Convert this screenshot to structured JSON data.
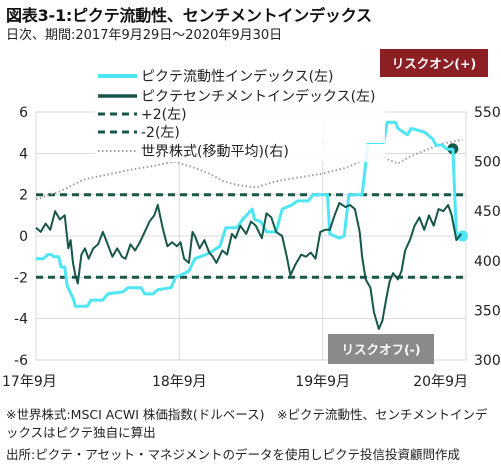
{
  "title": "図表3-1:ピクテ流動性、センチメントインデックス",
  "subtitle": "日次、期間:2017年9月29日～2020年9月30日",
  "footnotes": {
    "line1": "※世界株式:MSCI ACWI 株価指数(ドルベース)　※ピクテ流動性、センチメントインデックスはピクテ独自に算出",
    "line2": "出所:ピクテ・アセット・マネジメントのデータを使用しピクテ投信投資顧問作成"
  },
  "colors": {
    "liquidity": "#4ee5f4",
    "sentiment": "#17574a",
    "threshold": "#17574a",
    "world": "#9e9e9e",
    "risk_on_bg": "#8b1f23",
    "risk_off_bg": "#8a8a8a",
    "plot_bg": "#ffffff",
    "grid": "#d9d9d9"
  },
  "chart_data": {
    "type": "line",
    "x_ticks": [
      "17年9月",
      "18年9月",
      "19年9月",
      "20年9月"
    ],
    "x_domain_months": [
      0,
      36
    ],
    "y_left": {
      "range": [
        -6,
        6
      ],
      "ticks": [
        -6,
        -4,
        -2,
        0,
        2,
        4,
        6
      ]
    },
    "y_right": {
      "range": [
        300,
        550
      ],
      "ticks": [
        300,
        350,
        400,
        450,
        500,
        550
      ]
    },
    "legend_position": "top-center",
    "annotations": {
      "risk_on": "リスクオン(+)",
      "risk_off": "リスクオフ(-)"
    },
    "series": [
      {
        "name": "ピクテ流動性インデックス(左)",
        "axis": "left",
        "style": "solid",
        "points": [
          [
            0,
            -1.1
          ],
          [
            0.6,
            -1.1
          ],
          [
            1.0,
            -0.9
          ],
          [
            1.3,
            -0.9
          ],
          [
            1.5,
            -1.0
          ],
          [
            1.9,
            -1.0
          ],
          [
            2.1,
            -1.5
          ],
          [
            2.4,
            -1.5
          ],
          [
            2.6,
            -2.4
          ],
          [
            3.1,
            -3.0
          ],
          [
            3.3,
            -3.4
          ],
          [
            4.3,
            -3.4
          ],
          [
            4.6,
            -3.1
          ],
          [
            5.6,
            -3.1
          ],
          [
            6.0,
            -2.8
          ],
          [
            7.3,
            -2.7
          ],
          [
            7.7,
            -2.5
          ],
          [
            8.8,
            -2.5
          ],
          [
            9.1,
            -2.8
          ],
          [
            9.8,
            -2.8
          ],
          [
            10.2,
            -2.6
          ],
          [
            11.3,
            -2.5
          ],
          [
            11.7,
            -2.0
          ],
          [
            12.8,
            -1.7
          ],
          [
            13.3,
            -1.1
          ],
          [
            14.2,
            -0.9
          ],
          [
            14.6,
            -0.8
          ],
          [
            15.4,
            -0.5
          ],
          [
            15.9,
            0.4
          ],
          [
            16.8,
            0.4
          ],
          [
            17.3,
            0.8
          ],
          [
            18.1,
            1.3
          ],
          [
            18.3,
            0.8
          ],
          [
            18.8,
            0.7
          ],
          [
            19.3,
            0.2
          ],
          [
            20.1,
            0.2
          ],
          [
            20.6,
            1.3
          ],
          [
            21.4,
            1.5
          ],
          [
            21.9,
            1.7
          ],
          [
            22.8,
            1.7
          ],
          [
            23.2,
            2.0
          ],
          [
            24.4,
            2.0
          ],
          [
            24.6,
            0.1
          ],
          [
            25.4,
            -0.1
          ],
          [
            25.8,
            0.0
          ],
          [
            26.2,
            2.0
          ],
          [
            27.3,
            2.0
          ],
          [
            27.8,
            4.5
          ],
          [
            29.1,
            4.5
          ],
          [
            29.4,
            5.5
          ],
          [
            30.1,
            5.5
          ],
          [
            30.3,
            5.2
          ],
          [
            31.1,
            4.9
          ],
          [
            31.4,
            5.2
          ],
          [
            32.1,
            5.1
          ],
          [
            32.6,
            5.0
          ],
          [
            33.2,
            4.7
          ],
          [
            33.5,
            4.4
          ],
          [
            34.0,
            4.4
          ],
          [
            34.4,
            4.2
          ],
          [
            34.9,
            4.2
          ],
          [
            35.2,
            0.0
          ],
          [
            35.7,
            0.0
          ]
        ]
      },
      {
        "name": "ピクテセンチメントインデックス(左)",
        "axis": "left",
        "style": "solid",
        "points": [
          [
            0,
            0.4
          ],
          [
            0.4,
            0.2
          ],
          [
            0.8,
            0.6
          ],
          [
            1.2,
            0.3
          ],
          [
            1.6,
            1.2
          ],
          [
            2.0,
            0.8
          ],
          [
            2.4,
            1.0
          ],
          [
            2.7,
            -0.6
          ],
          [
            2.9,
            -0.2
          ],
          [
            3.1,
            -1.3
          ],
          [
            3.3,
            -1.9
          ],
          [
            3.5,
            -2.3
          ],
          [
            3.8,
            -0.9
          ],
          [
            4.1,
            -0.6
          ],
          [
            4.4,
            -1.1
          ],
          [
            4.8,
            -0.6
          ],
          [
            5.2,
            -0.4
          ],
          [
            5.6,
            0.2
          ],
          [
            6.0,
            -0.4
          ],
          [
            6.4,
            -1.0
          ],
          [
            6.8,
            -0.6
          ],
          [
            7.2,
            -1.0
          ],
          [
            7.5,
            -1.1
          ],
          [
            7.9,
            -0.4
          ],
          [
            8.3,
            -0.7
          ],
          [
            8.7,
            -0.3
          ],
          [
            9.1,
            0.2
          ],
          [
            9.5,
            0.7
          ],
          [
            9.9,
            1.0
          ],
          [
            10.2,
            1.5
          ],
          [
            10.6,
            0.4
          ],
          [
            11.0,
            -0.5
          ],
          [
            11.4,
            -0.3
          ],
          [
            11.8,
            -0.5
          ],
          [
            12.1,
            -0.3
          ],
          [
            12.4,
            -1.1
          ],
          [
            12.8,
            -1.3
          ],
          [
            13.1,
            0.2
          ],
          [
            13.3,
            0.0
          ],
          [
            13.7,
            -0.6
          ],
          [
            14.1,
            -0.2
          ],
          [
            14.5,
            -0.8
          ],
          [
            14.8,
            -1.0
          ],
          [
            15.1,
            -1.3
          ],
          [
            15.6,
            -0.7
          ],
          [
            16.0,
            -0.9
          ],
          [
            16.4,
            0.1
          ],
          [
            16.7,
            -0.1
          ],
          [
            17.1,
            0.5
          ],
          [
            17.6,
            0.1
          ],
          [
            18.0,
            0.7
          ],
          [
            18.4,
            0.5
          ],
          [
            18.9,
            -0.1
          ],
          [
            19.3,
            1.1
          ],
          [
            19.7,
            0.9
          ],
          [
            20.1,
            0.2
          ],
          [
            20.6,
            0.0
          ],
          [
            21.0,
            -1.0
          ],
          [
            21.3,
            -1.9
          ],
          [
            21.7,
            -1.4
          ],
          [
            22.2,
            -0.9
          ],
          [
            22.6,
            -1.0
          ],
          [
            23.0,
            -0.8
          ],
          [
            23.4,
            -1.1
          ],
          [
            23.8,
            0.2
          ],
          [
            24.2,
            0.3
          ],
          [
            24.6,
            0.3
          ],
          [
            25.0,
            1.0
          ],
          [
            25.4,
            1.6
          ],
          [
            25.9,
            1.4
          ],
          [
            26.3,
            1.5
          ],
          [
            26.7,
            1.3
          ],
          [
            27.1,
            0.2
          ],
          [
            27.3,
            -1.0
          ],
          [
            27.6,
            -2.1
          ],
          [
            28.0,
            -2.5
          ],
          [
            28.3,
            -3.7
          ],
          [
            28.5,
            -4.1
          ],
          [
            28.7,
            -4.5
          ],
          [
            29.0,
            -4.1
          ],
          [
            29.3,
            -3.1
          ],
          [
            29.6,
            -2.2
          ],
          [
            29.9,
            -1.8
          ],
          [
            30.3,
            -2.1
          ],
          [
            30.6,
            -1.7
          ],
          [
            30.9,
            -0.7
          ],
          [
            31.3,
            -0.2
          ],
          [
            31.7,
            0.5
          ],
          [
            32.1,
            0.9
          ],
          [
            32.5,
            0.3
          ],
          [
            32.9,
            1.0
          ],
          [
            33.3,
            0.5
          ],
          [
            33.7,
            1.3
          ],
          [
            34.1,
            1.2
          ],
          [
            34.5,
            1.5
          ],
          [
            34.8,
            1.0
          ],
          [
            35.2,
            -0.2
          ],
          [
            35.6,
            0.1
          ]
        ]
      },
      {
        "name": "+2(左)",
        "axis": "left",
        "style": "dashed",
        "points": [
          [
            0,
            2
          ],
          [
            36,
            2
          ]
        ]
      },
      {
        "name": "-2(左)",
        "axis": "left",
        "style": "dashed",
        "points": [
          [
            0,
            -2
          ],
          [
            36,
            -2
          ]
        ]
      },
      {
        "name": "世界株式(移動平均)(右)",
        "axis": "right",
        "style": "dotted",
        "points": [
          [
            0,
            462
          ],
          [
            2.0,
            470
          ],
          [
            4.0,
            482
          ],
          [
            6.0,
            487
          ],
          [
            8.0,
            492
          ],
          [
            10.0,
            496
          ],
          [
            11.5,
            500
          ],
          [
            13.0,
            495
          ],
          [
            14.5,
            488
          ],
          [
            15.7,
            480
          ],
          [
            17.0,
            476
          ],
          [
            18.5,
            474
          ],
          [
            20.0,
            480
          ],
          [
            22.0,
            484
          ],
          [
            24.0,
            488
          ],
          [
            26.0,
            494
          ],
          [
            27.5,
            502
          ],
          [
            28.6,
            507
          ],
          [
            29.3,
            503
          ],
          [
            30.3,
            498
          ],
          [
            31.3,
            505
          ],
          [
            32.5,
            511
          ],
          [
            34.0,
            518
          ],
          [
            35.7,
            522
          ]
        ]
      }
    ]
  }
}
